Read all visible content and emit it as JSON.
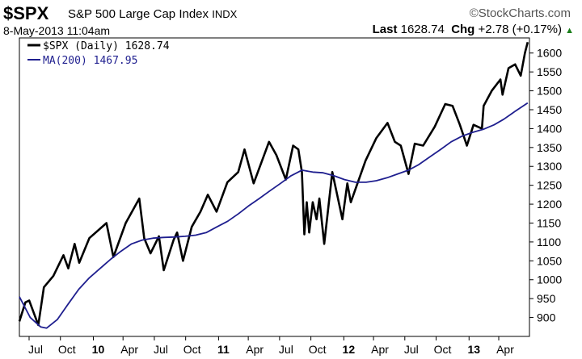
{
  "header": {
    "symbol": "$SPX",
    "name": "S&P 500 Large Cap Index",
    "exchange": "INDX",
    "brand": "©StockCharts.com",
    "date": "8-May-2013 11:04am",
    "last_label": "Last",
    "last_value": "1628.74",
    "chg_label": "Chg",
    "chg_value": "+2.78 (+0.17%)",
    "chg_icon": "up-triangle-icon",
    "chg_color": "#1b7f1b"
  },
  "legend": {
    "series_1": "$SPX (Daily) 1628.74",
    "series_2": "MA(200) 1467.95"
  },
  "chart_data": {
    "type": "line",
    "x_ticks": [
      "Jul",
      "Oct",
      "10",
      "Apr",
      "Jul",
      "Oct",
      "11",
      "Apr",
      "Jul",
      "Oct",
      "12",
      "Apr",
      "Jul",
      "Oct",
      "13",
      "Apr"
    ],
    "year_ticks": [
      "10",
      "11",
      "12",
      "13"
    ],
    "y_ticks": [
      900,
      950,
      1000,
      1050,
      1100,
      1150,
      1200,
      1250,
      1300,
      1350,
      1400,
      1450,
      1500,
      1550,
      1600
    ],
    "ylim": [
      850,
      1640
    ],
    "grid": false,
    "legend_position": "top-left",
    "series": [
      {
        "name": "$SPX (Daily)",
        "color": "#000000",
        "points": [
          [
            "2009-05-15",
            890
          ],
          [
            "2009-06-01",
            940
          ],
          [
            "2009-06-12",
            945
          ],
          [
            "2009-07-08",
            880
          ],
          [
            "2009-07-24",
            980
          ],
          [
            "2009-08-20",
            1010
          ],
          [
            "2009-09-18",
            1065
          ],
          [
            "2009-10-02",
            1030
          ],
          [
            "2009-10-20",
            1095
          ],
          [
            "2009-11-02",
            1045
          ],
          [
            "2009-12-01",
            1110
          ],
          [
            "2010-01-19",
            1150
          ],
          [
            "2010-02-08",
            1060
          ],
          [
            "2010-03-15",
            1150
          ],
          [
            "2010-04-23",
            1215
          ],
          [
            "2010-05-07",
            1110
          ],
          [
            "2010-05-25",
            1070
          ],
          [
            "2010-06-18",
            1115
          ],
          [
            "2010-07-02",
            1025
          ],
          [
            "2010-07-30",
            1105
          ],
          [
            "2010-08-09",
            1125
          ],
          [
            "2010-08-26",
            1050
          ],
          [
            "2010-09-20",
            1140
          ],
          [
            "2010-10-15",
            1180
          ],
          [
            "2010-11-05",
            1225
          ],
          [
            "2010-11-30",
            1180
          ],
          [
            "2010-12-31",
            1258
          ],
          [
            "2011-01-31",
            1285
          ],
          [
            "2011-02-18",
            1345
          ],
          [
            "2011-03-16",
            1255
          ],
          [
            "2011-04-29",
            1365
          ],
          [
            "2011-05-20",
            1330
          ],
          [
            "2011-06-16",
            1265
          ],
          [
            "2011-07-07",
            1355
          ],
          [
            "2011-07-22",
            1345
          ],
          [
            "2011-08-01",
            1285
          ],
          [
            "2011-08-08",
            1120
          ],
          [
            "2011-08-15",
            1205
          ],
          [
            "2011-08-22",
            1125
          ],
          [
            "2011-09-01",
            1205
          ],
          [
            "2011-09-12",
            1160
          ],
          [
            "2011-09-20",
            1215
          ],
          [
            "2011-10-04",
            1095
          ],
          [
            "2011-10-27",
            1285
          ],
          [
            "2011-11-25",
            1160
          ],
          [
            "2011-12-09",
            1255
          ],
          [
            "2011-12-19",
            1205
          ],
          [
            "2012-01-30",
            1315
          ],
          [
            "2012-03-01",
            1375
          ],
          [
            "2012-04-02",
            1415
          ],
          [
            "2012-04-23",
            1365
          ],
          [
            "2012-05-10",
            1355
          ],
          [
            "2012-06-01",
            1280
          ],
          [
            "2012-06-19",
            1360
          ],
          [
            "2012-07-13",
            1355
          ],
          [
            "2012-08-15",
            1405
          ],
          [
            "2012-09-14",
            1465
          ],
          [
            "2012-10-05",
            1460
          ],
          [
            "2012-10-26",
            1410
          ],
          [
            "2012-11-15",
            1355
          ],
          [
            "2012-12-04",
            1410
          ],
          [
            "2012-12-28",
            1400
          ],
          [
            "2013-01-02",
            1460
          ],
          [
            "2013-01-25",
            1500
          ],
          [
            "2013-02-19",
            1530
          ],
          [
            "2013-02-25",
            1490
          ],
          [
            "2013-03-14",
            1560
          ],
          [
            "2013-04-02",
            1570
          ],
          [
            "2013-04-18",
            1540
          ],
          [
            "2013-04-30",
            1600
          ],
          [
            "2013-05-08",
            1628.74
          ]
        ]
      },
      {
        "name": "MA(200)",
        "color": "#1f1f8f",
        "points": [
          [
            "2009-05-15",
            955
          ],
          [
            "2009-06-15",
            900
          ],
          [
            "2009-07-15",
            875
          ],
          [
            "2009-08-01",
            872
          ],
          [
            "2009-09-01",
            895
          ],
          [
            "2009-10-01",
            935
          ],
          [
            "2009-11-01",
            975
          ],
          [
            "2009-12-01",
            1005
          ],
          [
            "2010-01-01",
            1030
          ],
          [
            "2010-02-01",
            1055
          ],
          [
            "2010-03-01",
            1075
          ],
          [
            "2010-04-01",
            1095
          ],
          [
            "2010-05-01",
            1105
          ],
          [
            "2010-06-01",
            1110
          ],
          [
            "2010-07-01",
            1112
          ],
          [
            "2010-08-01",
            1113
          ],
          [
            "2010-09-01",
            1115
          ],
          [
            "2010-10-01",
            1118
          ],
          [
            "2010-11-01",
            1125
          ],
          [
            "2010-12-01",
            1140
          ],
          [
            "2011-01-01",
            1155
          ],
          [
            "2011-02-01",
            1175
          ],
          [
            "2011-03-01",
            1195
          ],
          [
            "2011-04-01",
            1215
          ],
          [
            "2011-05-01",
            1235
          ],
          [
            "2011-06-01",
            1255
          ],
          [
            "2011-07-01",
            1275
          ],
          [
            "2011-08-01",
            1290
          ],
          [
            "2011-09-01",
            1285
          ],
          [
            "2011-10-01",
            1283
          ],
          [
            "2011-11-01",
            1275
          ],
          [
            "2011-12-01",
            1265
          ],
          [
            "2012-01-01",
            1258
          ],
          [
            "2012-02-01",
            1258
          ],
          [
            "2012-03-01",
            1262
          ],
          [
            "2012-04-01",
            1270
          ],
          [
            "2012-05-01",
            1280
          ],
          [
            "2012-06-01",
            1290
          ],
          [
            "2012-07-01",
            1305
          ],
          [
            "2012-08-01",
            1325
          ],
          [
            "2012-09-01",
            1345
          ],
          [
            "2012-10-01",
            1365
          ],
          [
            "2012-11-01",
            1380
          ],
          [
            "2012-12-01",
            1390
          ],
          [
            "2013-01-01",
            1398
          ],
          [
            "2013-02-01",
            1410
          ],
          [
            "2013-03-01",
            1425
          ],
          [
            "2013-04-01",
            1445
          ],
          [
            "2013-05-08",
            1467.95
          ]
        ]
      }
    ]
  }
}
